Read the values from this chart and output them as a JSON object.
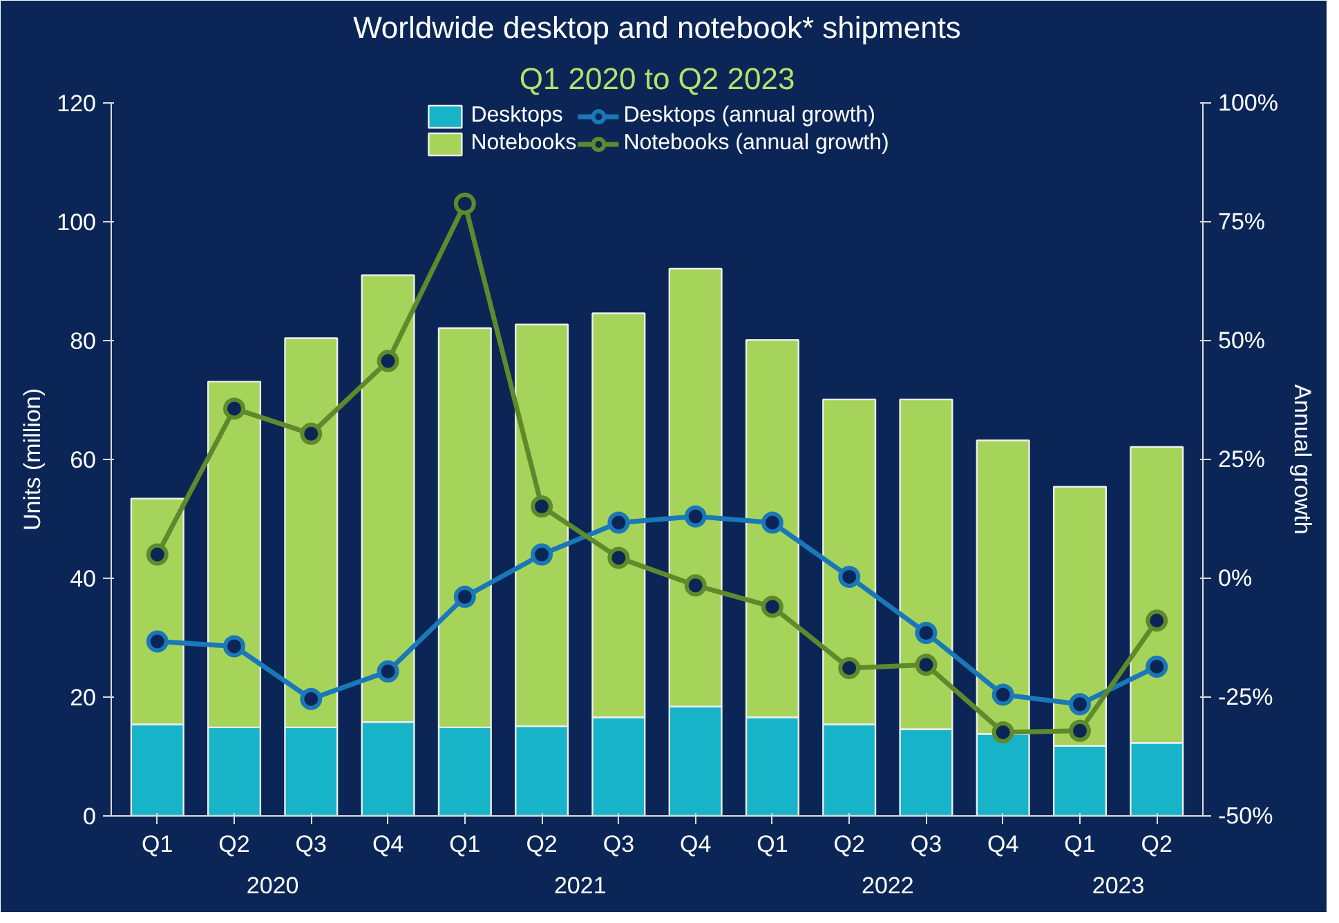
{
  "chart_data": {
    "type": "bar",
    "title": "Worldwide desktop and notebook* shipments",
    "subtitle": "Q1 2020 to Q2 2023",
    "ylabel": "Units (million)",
    "y2label": "Annual growth",
    "categories": [
      "Q1",
      "Q2",
      "Q3",
      "Q4",
      "Q1",
      "Q2",
      "Q3",
      "Q4",
      "Q1",
      "Q2",
      "Q3",
      "Q4",
      "Q1",
      "Q2"
    ],
    "annotations": [
      "2020",
      "2021",
      "2022",
      "2023"
    ],
    "stacked": true,
    "series": [
      {
        "name": "Desktops",
        "color": "#17b3c8",
        "values": [
          15.4,
          14.9,
          14.9,
          15.8,
          14.9,
          15.1,
          16.6,
          18.4,
          16.6,
          15.4,
          14.6,
          13.8,
          11.8,
          12.3
        ]
      },
      {
        "name": "Notebooks",
        "color": "#a6d45a",
        "values": [
          38.0,
          58.2,
          65.5,
          75.2,
          67.2,
          67.6,
          68.0,
          73.7,
          63.5,
          54.7,
          55.5,
          49.4,
          43.6,
          49.8
        ]
      },
      {
        "name": "Desktops (annual growth)",
        "type": "line",
        "axis": "y2",
        "color": "#1a78b8",
        "values": [
          -13.3,
          -14.3,
          -25.4,
          -19.6,
          -3.9,
          5.0,
          11.7,
          13.0,
          11.7,
          0.3,
          -11.5,
          -24.5,
          -26.5,
          -18.6
        ]
      },
      {
        "name": "Notebooks (annual growth)",
        "type": "line",
        "axis": "y2",
        "color": "#5e8a2c",
        "values": [
          5.0,
          35.7,
          30.4,
          45.7,
          78.8,
          15.1,
          4.3,
          -1.5,
          -6.0,
          -18.9,
          -18.2,
          -32.4,
          -32.1,
          -8.9
        ]
      }
    ],
    "ylim": [
      0,
      120
    ],
    "yticks": [
      0,
      20,
      40,
      60,
      80,
      100,
      120
    ],
    "y2lim": [
      -50,
      100
    ],
    "y2ticks": [
      {
        "value": -50,
        "label": "-50%"
      },
      {
        "value": -25,
        "label": "-25%"
      },
      {
        "value": 0,
        "label": "0%"
      },
      {
        "value": 25,
        "label": "25%"
      },
      {
        "value": 50,
        "label": "50%"
      },
      {
        "value": 75,
        "label": "75%"
      },
      {
        "value": 100,
        "label": "100%"
      }
    ],
    "marker": "circle",
    "line_style": "solid",
    "grid": false,
    "legend": "top"
  }
}
